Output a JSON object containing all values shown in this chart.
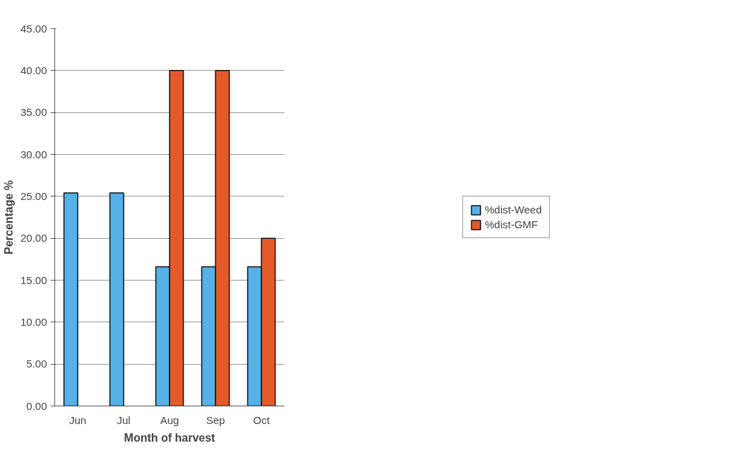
{
  "chart_data": {
    "type": "bar",
    "xlabel": "Month of harvest",
    "ylabel": "Percentage %",
    "categories": [
      "Jun",
      "Jul",
      "Aug",
      "Sep",
      "Oct"
    ],
    "series": [
      {
        "name": "%dist-Weed",
        "color": "#55b1e6",
        "values": [
          25.4,
          25.4,
          16.6,
          16.6,
          16.6
        ]
      },
      {
        "name": "%dist-GMF",
        "color": "#e55a2b",
        "values": [
          null,
          null,
          40,
          40,
          20
        ]
      }
    ],
    "ylim": [
      0,
      45
    ],
    "yticks": [
      {
        "value": 0,
        "label": "0.00"
      },
      {
        "value": 5,
        "label": "5.00"
      },
      {
        "value": 10,
        "label": "10.00"
      },
      {
        "value": 15,
        "label": "15.00"
      },
      {
        "value": 20,
        "label": "20.00"
      },
      {
        "value": 25,
        "label": "25.00"
      },
      {
        "value": 30,
        "label": "30.00"
      },
      {
        "value": 35,
        "label": "35.00"
      },
      {
        "value": 40,
        "label": "40.00"
      },
      {
        "value": 45,
        "label": "45.00"
      }
    ],
    "grid": "y",
    "legend": "right"
  }
}
